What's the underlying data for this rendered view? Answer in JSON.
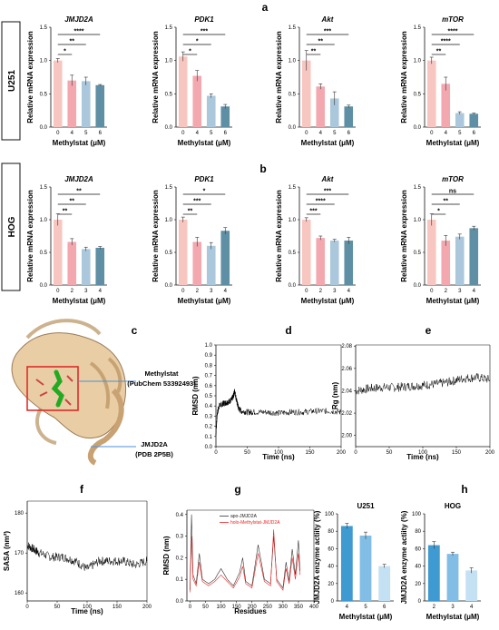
{
  "panel_labels": {
    "a": "a",
    "b": "b",
    "c": "c",
    "d": "d",
    "e": "e",
    "f": "f",
    "g": "g",
    "h_left": "h"
  },
  "row_labels": {
    "u251": "U251",
    "hog": "HOG"
  },
  "structure": {
    "ligand_label": "Methylstat",
    "ligand_id": "(PubChem 53392493)",
    "protein_label": "JMJD2A",
    "protein_id": "(PDB 2P5B)"
  },
  "chart_data": [
    {
      "id": "a1",
      "type": "bar",
      "title": "JMJD2A",
      "xlabel": "Methylstat (μM)",
      "ylabel": "Relative mRNA expression",
      "categories": [
        "0",
        "4",
        "5",
        "6"
      ],
      "values": [
        1.0,
        0.7,
        0.69,
        0.63
      ],
      "errors": [
        0.03,
        0.08,
        0.06,
        0.01
      ],
      "ylim": [
        0,
        1.5
      ],
      "yticks": [
        0,
        0.5,
        1.0,
        1.5
      ],
      "colors": [
        "#f8c6c0",
        "#f3a8b0",
        "#aac7dc",
        "#5e8fa4"
      ],
      "sig": [
        {
          "i": 1,
          "label": "*"
        },
        {
          "i": 2,
          "label": "**"
        },
        {
          "i": 3,
          "label": "****"
        }
      ]
    },
    {
      "id": "a2",
      "type": "bar",
      "title": "PDK1",
      "xlabel": "Methylstat (μM)",
      "ylabel": "Relative mRNA expression",
      "categories": [
        "0",
        "4",
        "5",
        "6"
      ],
      "values": [
        1.06,
        0.77,
        0.47,
        0.31
      ],
      "errors": [
        0.07,
        0.08,
        0.03,
        0.03
      ],
      "ylim": [
        0,
        1.5
      ],
      "yticks": [
        0,
        0.5,
        1.0,
        1.5
      ],
      "colors": [
        "#f8c6c0",
        "#f3a8b0",
        "#aac7dc",
        "#5e8fa4"
      ],
      "sig": [
        {
          "i": 1,
          "label": "*"
        },
        {
          "i": 2,
          "label": "*"
        },
        {
          "i": 3,
          "label": "***"
        }
      ]
    },
    {
      "id": "a3",
      "type": "bar",
      "title": "Akt",
      "xlabel": "Methylstat (μM)",
      "ylabel": "Relative mRNA expression",
      "categories": [
        "0",
        "4",
        "5",
        "6"
      ],
      "values": [
        1.0,
        0.61,
        0.43,
        0.31
      ],
      "errors": [
        0.15,
        0.04,
        0.1,
        0.02
      ],
      "ylim": [
        0,
        1.5
      ],
      "yticks": [
        0,
        0.5,
        1.0,
        1.5
      ],
      "colors": [
        "#f8c6c0",
        "#f3a8b0",
        "#aac7dc",
        "#5e8fa4"
      ],
      "sig": [
        {
          "i": 1,
          "label": "**"
        },
        {
          "i": 2,
          "label": "**"
        },
        {
          "i": 3,
          "label": "***"
        }
      ]
    },
    {
      "id": "a4",
      "type": "bar",
      "title": "mTOR",
      "xlabel": "Methylstat (μM)",
      "ylabel": "Relative mRNA expression",
      "categories": [
        "0",
        "4",
        "5",
        "6"
      ],
      "values": [
        1.0,
        0.65,
        0.21,
        0.2
      ],
      "errors": [
        0.05,
        0.1,
        0.02,
        0.01
      ],
      "ylim": [
        0,
        1.5
      ],
      "yticks": [
        0,
        0.5,
        1.0,
        1.5
      ],
      "colors": [
        "#f8c6c0",
        "#f3a8b0",
        "#aac7dc",
        "#5e8fa4"
      ],
      "sig": [
        {
          "i": 1,
          "label": "**"
        },
        {
          "i": 2,
          "label": "****"
        },
        {
          "i": 3,
          "label": "****"
        }
      ]
    },
    {
      "id": "b1",
      "type": "bar",
      "title": "JMJD2A",
      "xlabel": "Methylstat (μM)",
      "ylabel": "Relative mRNA expression",
      "categories": [
        "0",
        "2",
        "3",
        "4"
      ],
      "values": [
        1.0,
        0.66,
        0.55,
        0.57
      ],
      "errors": [
        0.09,
        0.05,
        0.03,
        0.02
      ],
      "ylim": [
        0,
        1.5
      ],
      "yticks": [
        0,
        0.5,
        1.0,
        1.5
      ],
      "colors": [
        "#f8c6c0",
        "#f3a8b0",
        "#aac7dc",
        "#5e8fa4"
      ],
      "sig": [
        {
          "i": 1,
          "label": "**"
        },
        {
          "i": 2,
          "label": "**"
        },
        {
          "i": 3,
          "label": "**"
        }
      ]
    },
    {
      "id": "b2",
      "type": "bar",
      "title": "PDK1",
      "xlabel": "Methylstat (μM)",
      "ylabel": "Relative mRNA expression",
      "categories": [
        "0",
        "2",
        "3",
        "4"
      ],
      "values": [
        1.0,
        0.66,
        0.6,
        0.83
      ],
      "errors": [
        0.04,
        0.07,
        0.05,
        0.05
      ],
      "ylim": [
        0,
        1.5
      ],
      "yticks": [
        0,
        0.5,
        1.0,
        1.5
      ],
      "colors": [
        "#f8c6c0",
        "#f3a8b0",
        "#aac7dc",
        "#5e8fa4"
      ],
      "sig": [
        {
          "i": 1,
          "label": "**"
        },
        {
          "i": 2,
          "label": "***"
        },
        {
          "i": 3,
          "label": "*"
        }
      ]
    },
    {
      "id": "b3",
      "type": "bar",
      "title": "Akt",
      "xlabel": "Methylstat (μM)",
      "ylabel": "Relative mRNA expression",
      "categories": [
        "0",
        "2",
        "3",
        "4"
      ],
      "values": [
        1.0,
        0.72,
        0.68,
        0.68
      ],
      "errors": [
        0.03,
        0.03,
        0.02,
        0.05
      ],
      "ylim": [
        0,
        1.5
      ],
      "yticks": [
        0,
        0.5,
        1.0,
        1.5
      ],
      "colors": [
        "#f8c6c0",
        "#f3a8b0",
        "#aac7dc",
        "#5e8fa4"
      ],
      "sig": [
        {
          "i": 1,
          "label": "***"
        },
        {
          "i": 2,
          "label": "****"
        },
        {
          "i": 3,
          "label": "***"
        }
      ]
    },
    {
      "id": "b4",
      "type": "bar",
      "title": "mTOR",
      "xlabel": "Methylstat (μM)",
      "ylabel": "Relative mRNA expression",
      "categories": [
        "0",
        "2",
        "3",
        "4"
      ],
      "values": [
        1.0,
        0.68,
        0.74,
        0.87
      ],
      "errors": [
        0.09,
        0.08,
        0.04,
        0.03
      ],
      "ylim": [
        0,
        1.5
      ],
      "yticks": [
        0,
        0.5,
        1.0,
        1.5
      ],
      "colors": [
        "#f8c6c0",
        "#f3a8b0",
        "#aac7dc",
        "#5e8fa4"
      ],
      "sig": [
        {
          "i": 1,
          "label": "*"
        },
        {
          "i": 2,
          "label": "**"
        },
        {
          "i": 3,
          "label": "ns"
        }
      ]
    },
    {
      "id": "d",
      "type": "line",
      "xlabel": "Time (ns)",
      "ylabel": "RMSD (nm)",
      "xlim": [
        0,
        200
      ],
      "ylim": [
        0,
        1.0
      ],
      "xticks": [
        0,
        50,
        100,
        150,
        200
      ],
      "yticks": [
        0,
        0.1,
        0.2,
        0.3,
        0.4,
        0.5,
        0.6,
        0.7,
        0.8,
        0.9,
        1.0
      ],
      "ytick_labels": [
        "0.0",
        "0.1",
        "0.2",
        "0.3",
        "0.4",
        "0.5",
        "0.6",
        "0.7",
        "0.8",
        "0.9",
        "1.0"
      ],
      "series": [
        {
          "x": [
            0,
            2,
            5,
            10,
            15,
            20,
            25,
            28,
            30,
            33,
            36,
            40,
            50,
            60,
            80,
            100,
            120,
            140,
            160,
            180,
            200
          ],
          "y": [
            0.12,
            0.32,
            0.4,
            0.42,
            0.43,
            0.44,
            0.46,
            0.5,
            0.55,
            0.45,
            0.38,
            0.35,
            0.34,
            0.34,
            0.34,
            0.33,
            0.34,
            0.34,
            0.35,
            0.35,
            0.34
          ]
        }
      ]
    },
    {
      "id": "e",
      "type": "line",
      "xlabel": "Time (ns)",
      "ylabel": "Rg (nm)",
      "xlim": [
        0,
        200
      ],
      "ylim": [
        1.99,
        2.081
      ],
      "xticks": [
        0,
        50,
        100,
        150,
        200
      ],
      "yticks": [
        2.0,
        2.02,
        2.04,
        2.06,
        2.08
      ],
      "ytick_labels": [
        "2.00",
        "2.02",
        "2.04",
        "2.06",
        "2.08"
      ],
      "series": [
        {
          "x": [
            0,
            20,
            40,
            60,
            80,
            100,
            120,
            140,
            160,
            180,
            200
          ],
          "y": [
            2.04,
            2.042,
            2.043,
            2.043,
            2.044,
            2.045,
            2.046,
            2.048,
            2.051,
            2.052,
            2.05
          ]
        }
      ]
    },
    {
      "id": "f",
      "type": "line",
      "xlabel": "Time (ns)",
      "ylabel": "SASA (nm²)",
      "xlim": [
        0,
        200
      ],
      "ylim": [
        158,
        183
      ],
      "xticks": [
        0,
        50,
        100,
        150,
        200
      ],
      "yticks": [
        160,
        170,
        180
      ],
      "ytick_labels": [
        "160",
        "170",
        "180"
      ],
      "series": [
        {
          "x": [
            0,
            10,
            20,
            40,
            60,
            80,
            100,
            120,
            140,
            160,
            180,
            200
          ],
          "y": [
            172,
            171,
            170,
            169,
            169,
            168,
            166,
            168,
            168,
            168,
            167,
            168
          ]
        }
      ]
    },
    {
      "id": "g",
      "type": "line",
      "xlabel": "Residues",
      "ylabel": "RMSD (nm)",
      "xlim": [
        -10,
        400
      ],
      "ylim": [
        0,
        0.42
      ],
      "xticks": [
        0,
        50,
        100,
        150,
        200,
        250,
        300,
        350,
        400
      ],
      "yticks": [
        0,
        0.1,
        0.2,
        0.3,
        0.4
      ],
      "ytick_labels": [
        "0.0",
        "0.1",
        "0.2",
        "0.3",
        "0.4"
      ],
      "series": [
        {
          "name": "apo-JMJD2A",
          "color": "#333333",
          "x": [
            0,
            5,
            10,
            20,
            30,
            40,
            60,
            80,
            100,
            120,
            140,
            160,
            170,
            180,
            200,
            220,
            240,
            260,
            270,
            280,
            300,
            310,
            320,
            330,
            340,
            350,
            355
          ],
          "y": [
            0.05,
            0.4,
            0.12,
            0.08,
            0.22,
            0.1,
            0.08,
            0.1,
            0.15,
            0.1,
            0.07,
            0.13,
            0.2,
            0.09,
            0.07,
            0.26,
            0.1,
            0.08,
            0.3,
            0.1,
            0.06,
            0.18,
            0.09,
            0.24,
            0.12,
            0.28,
            0.14
          ]
        },
        {
          "name": "holo-Methylstat-JMJD2A",
          "color": "#ee2222",
          "x": [
            0,
            5,
            10,
            20,
            30,
            40,
            60,
            80,
            100,
            120,
            140,
            160,
            170,
            180,
            200,
            220,
            240,
            260,
            270,
            280,
            300,
            310,
            320,
            330,
            340,
            350,
            355
          ],
          "y": [
            0.04,
            0.3,
            0.1,
            0.07,
            0.18,
            0.09,
            0.07,
            0.09,
            0.12,
            0.09,
            0.06,
            0.11,
            0.16,
            0.08,
            0.06,
            0.22,
            0.09,
            0.07,
            0.33,
            0.09,
            0.05,
            0.15,
            0.08,
            0.2,
            0.1,
            0.22,
            0.12
          ]
        }
      ]
    },
    {
      "id": "h1",
      "type": "bar",
      "title": "U251",
      "xlabel": "Methylstat (μM)",
      "ylabel": "JMJD2A enzyme actiity (%)",
      "categories": [
        "4",
        "5",
        "6"
      ],
      "values": [
        86,
        75,
        40
      ],
      "errors": [
        3,
        4,
        2
      ],
      "ylim": [
        0,
        100
      ],
      "yticks": [
        0,
        20,
        40,
        60,
        80,
        100
      ],
      "colors": [
        "#3f9ad2",
        "#82bde5",
        "#c4e0f3"
      ]
    },
    {
      "id": "h2",
      "type": "bar",
      "title": "HOG",
      "xlabel": "Methylstat (μM)",
      "ylabel": "JMJD2A enzyme actiity (%)",
      "categories": [
        "2",
        "3",
        "4"
      ],
      "values": [
        64,
        54,
        35
      ],
      "errors": [
        4,
        2,
        3
      ],
      "ylim": [
        0,
        100
      ],
      "yticks": [
        0,
        20,
        40,
        60,
        80,
        100
      ],
      "colors": [
        "#3f9ad2",
        "#82bde5",
        "#c4e0f3"
      ]
    }
  ]
}
